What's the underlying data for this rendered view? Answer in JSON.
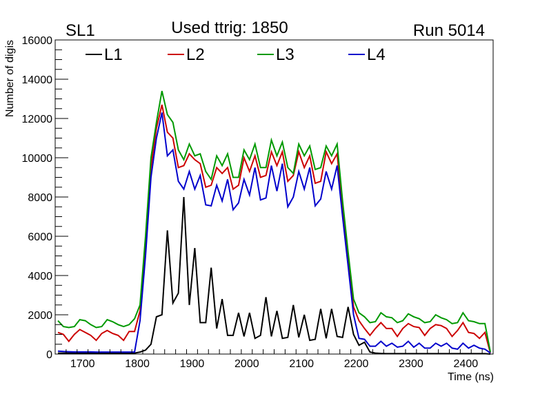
{
  "chart_data": {
    "type": "line",
    "title_left": "SL1",
    "title": "Used ttrig: 1850",
    "title_right": "Run 5014",
    "xlabel": "Time (ns)",
    "ylabel": "Number of digis",
    "xlim": [
      1650,
      2450
    ],
    "ylim": [
      0,
      16000
    ],
    "x_ticks": [
      1700,
      1800,
      1900,
      2000,
      2100,
      2200,
      2300,
      2400
    ],
    "y_ticks": [
      0,
      2000,
      4000,
      6000,
      8000,
      10000,
      12000,
      14000,
      16000
    ],
    "legend_placement": "top",
    "x_start": 1655,
    "bin_width": 10,
    "series": [
      {
        "name": "L1",
        "color": "#000000",
        "values": [
          50,
          50,
          50,
          50,
          50,
          50,
          50,
          50,
          50,
          50,
          50,
          50,
          50,
          50,
          50,
          100,
          200,
          500,
          1900,
          2000,
          6300,
          2600,
          3100,
          8000,
          2500,
          5400,
          1600,
          1600,
          4400,
          1300,
          2800,
          950,
          950,
          2100,
          900,
          2100,
          800,
          950,
          2900,
          900,
          2200,
          800,
          850,
          2500,
          850,
          2000,
          700,
          750,
          2300,
          800,
          2300,
          900,
          850,
          2400,
          1000,
          450,
          600,
          100,
          50,
          30,
          20,
          20,
          20,
          20,
          20,
          20,
          20,
          20,
          20,
          20,
          20,
          20,
          20,
          20,
          20,
          20,
          20,
          20,
          20,
          0
        ]
      },
      {
        "name": "L2",
        "color": "#cc0000",
        "values": [
          1100,
          1000,
          650,
          1000,
          1250,
          1100,
          950,
          700,
          1050,
          1200,
          1050,
          950,
          700,
          1150,
          1150,
          2200,
          5500,
          9500,
          11500,
          12700,
          11300,
          11000,
          9500,
          9600,
          10200,
          9900,
          9700,
          8500,
          8600,
          9500,
          9200,
          9500,
          8400,
          8600,
          10000,
          9300,
          10100,
          9000,
          9100,
          10300,
          9600,
          10300,
          8800,
          9100,
          10300,
          9500,
          10100,
          8700,
          8800,
          10300,
          9700,
          10200,
          7400,
          5000,
          2400,
          1700,
          1300,
          950,
          1300,
          1600,
          1300,
          1300,
          900,
          1300,
          1550,
          1400,
          1350,
          950,
          1300,
          1500,
          1450,
          1300,
          900,
          1200,
          1600,
          1100,
          1050,
          800,
          1100,
          50
        ]
      },
      {
        "name": "L3",
        "color": "#009900",
        "values": [
          1700,
          1400,
          1350,
          1400,
          1750,
          1700,
          1500,
          1350,
          1400,
          1750,
          1650,
          1500,
          1400,
          1500,
          1800,
          2500,
          6000,
          10000,
          11800,
          13400,
          12200,
          11800,
          10400,
          9900,
          10700,
          10100,
          10200,
          9300,
          8900,
          10100,
          9600,
          10200,
          9000,
          9000,
          10400,
          9900,
          10700,
          9500,
          9500,
          10900,
          10100,
          10800,
          9500,
          9200,
          10700,
          10100,
          10600,
          9400,
          9500,
          10600,
          10100,
          10700,
          7800,
          5200,
          2800,
          2100,
          1900,
          1600,
          1650,
          2100,
          1900,
          1850,
          1600,
          1700,
          2050,
          1900,
          1800,
          1600,
          1650,
          2000,
          1850,
          1750,
          1550,
          1600,
          2100,
          1700,
          1650,
          1550,
          1550,
          100
        ]
      },
      {
        "name": "L4",
        "color": "#0000cc",
        "values": [
          150,
          130,
          120,
          110,
          110,
          110,
          110,
          100,
          100,
          100,
          100,
          100,
          100,
          100,
          100,
          1700,
          5000,
          9000,
          11000,
          12300,
          10100,
          10400,
          8800,
          8400,
          9300,
          8400,
          9100,
          7600,
          7550,
          8600,
          7800,
          8900,
          7350,
          7700,
          8900,
          8100,
          9500,
          7850,
          7950,
          9600,
          8300,
          9700,
          7500,
          8000,
          9300,
          8400,
          9500,
          7550,
          7900,
          9300,
          8400,
          9600,
          7000,
          4500,
          2000,
          800,
          750,
          400,
          400,
          650,
          400,
          550,
          350,
          400,
          650,
          350,
          550,
          300,
          300,
          550,
          400,
          550,
          300,
          250,
          550,
          300,
          450,
          300,
          250,
          50
        ]
      }
    ]
  }
}
